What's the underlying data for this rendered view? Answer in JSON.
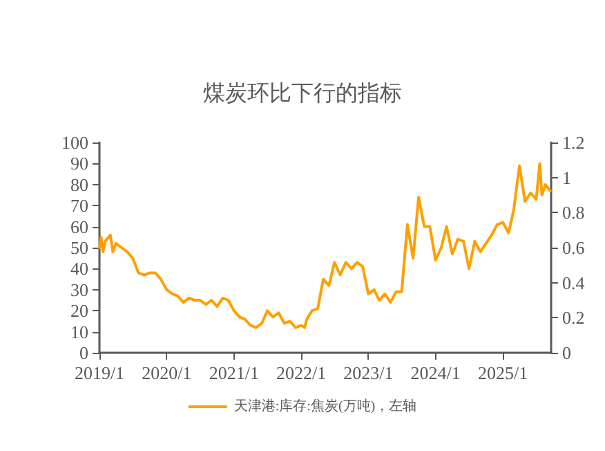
{
  "chart_data": {
    "type": "line",
    "title": "煤炭环比下行的指标",
    "x": [
      "2019-01-01",
      "2019-01-10",
      "2019-01-20",
      "2019-02-01",
      "2019-03-01",
      "2019-03-15",
      "2019-04-01",
      "2019-05-01",
      "2019-06-01",
      "2019-07-01",
      "2019-08-01",
      "2019-09-01",
      "2019-10-01",
      "2019-11-01",
      "2019-12-01",
      "2020-01-01",
      "2020-02-01",
      "2020-03-01",
      "2020-04-01",
      "2020-05-01",
      "2020-06-01",
      "2020-07-01",
      "2020-08-01",
      "2020-09-01",
      "2020-10-01",
      "2020-11-01",
      "2020-12-01",
      "2021-01-01",
      "2021-02-01",
      "2021-03-01",
      "2021-04-01",
      "2021-05-01",
      "2021-06-01",
      "2021-07-01",
      "2021-08-01",
      "2021-09-01",
      "2021-10-01",
      "2021-11-01",
      "2021-12-01",
      "2022-01-01",
      "2022-01-20",
      "2022-02-01",
      "2022-03-01",
      "2022-04-01",
      "2022-05-01",
      "2022-06-01",
      "2022-07-01",
      "2022-08-01",
      "2022-09-01",
      "2022-10-01",
      "2022-11-01",
      "2022-12-01",
      "2023-01-01",
      "2023-02-01",
      "2023-03-01",
      "2023-04-01",
      "2023-05-01",
      "2023-06-01",
      "2023-07-01",
      "2023-08-01",
      "2023-09-01",
      "2023-10-01",
      "2023-11-01",
      "2023-12-01",
      "2024-01-01",
      "2024-02-01",
      "2024-03-01",
      "2024-04-01",
      "2024-05-01",
      "2024-06-01",
      "2024-07-01",
      "2024-08-01",
      "2024-09-01",
      "2024-10-01",
      "2024-11-01",
      "2024-12-01",
      "2025-01-01",
      "2025-02-01",
      "2025-03-01",
      "2025-04-01",
      "2025-05-01",
      "2025-06-01",
      "2025-07-01",
      "2025-07-20",
      "2025-08-01",
      "2025-08-20",
      "2025-09-15"
    ],
    "series": [
      {
        "name": "天津港:库存:焦炭(万吨)，左轴",
        "color": "#ffa000",
        "values": [
          50,
          55,
          48,
          53,
          56,
          48,
          52,
          50,
          48,
          45,
          38,
          37,
          38,
          38,
          35,
          30,
          28,
          27,
          24,
          26,
          25,
          25,
          23,
          25,
          22,
          26,
          25,
          20,
          17,
          16,
          13,
          12,
          14,
          20,
          17,
          19,
          14,
          15,
          12,
          13,
          12,
          16,
          20,
          21,
          35,
          32,
          43,
          37,
          43,
          40,
          43,
          41,
          28,
          30,
          25,
          28,
          24,
          29,
          29,
          61,
          45,
          74,
          60,
          60,
          44,
          50,
          60,
          47,
          54,
          53,
          40,
          53,
          48,
          52,
          56,
          61,
          62,
          57,
          68,
          89,
          72,
          76,
          73,
          90,
          75,
          80,
          77
        ]
      }
    ],
    "xlim": [
      "2019-01-01",
      "2025-09-20"
    ],
    "xticks": [
      {
        "value": "2019-01-01",
        "label": "2019/1"
      },
      {
        "value": "2020-01-01",
        "label": "2020/1"
      },
      {
        "value": "2021-01-01",
        "label": "2021/1"
      },
      {
        "value": "2022-01-01",
        "label": "2022/1"
      },
      {
        "value": "2023-01-01",
        "label": "2023/1"
      },
      {
        "value": "2024-01-01",
        "label": "2024/1"
      },
      {
        "value": "2025-01-01",
        "label": "2025/1"
      }
    ],
    "ylim": [
      0,
      100
    ],
    "yticks": [
      0,
      10,
      20,
      30,
      40,
      50,
      60,
      70,
      80,
      90,
      100
    ],
    "y2lim": [
      0,
      1.2
    ],
    "y2ticks": [
      0,
      0.2,
      0.4,
      0.6,
      0.8,
      1,
      1.2
    ],
    "grid": false,
    "legend": "bottom",
    "marker": "none",
    "line_style": "solid"
  }
}
